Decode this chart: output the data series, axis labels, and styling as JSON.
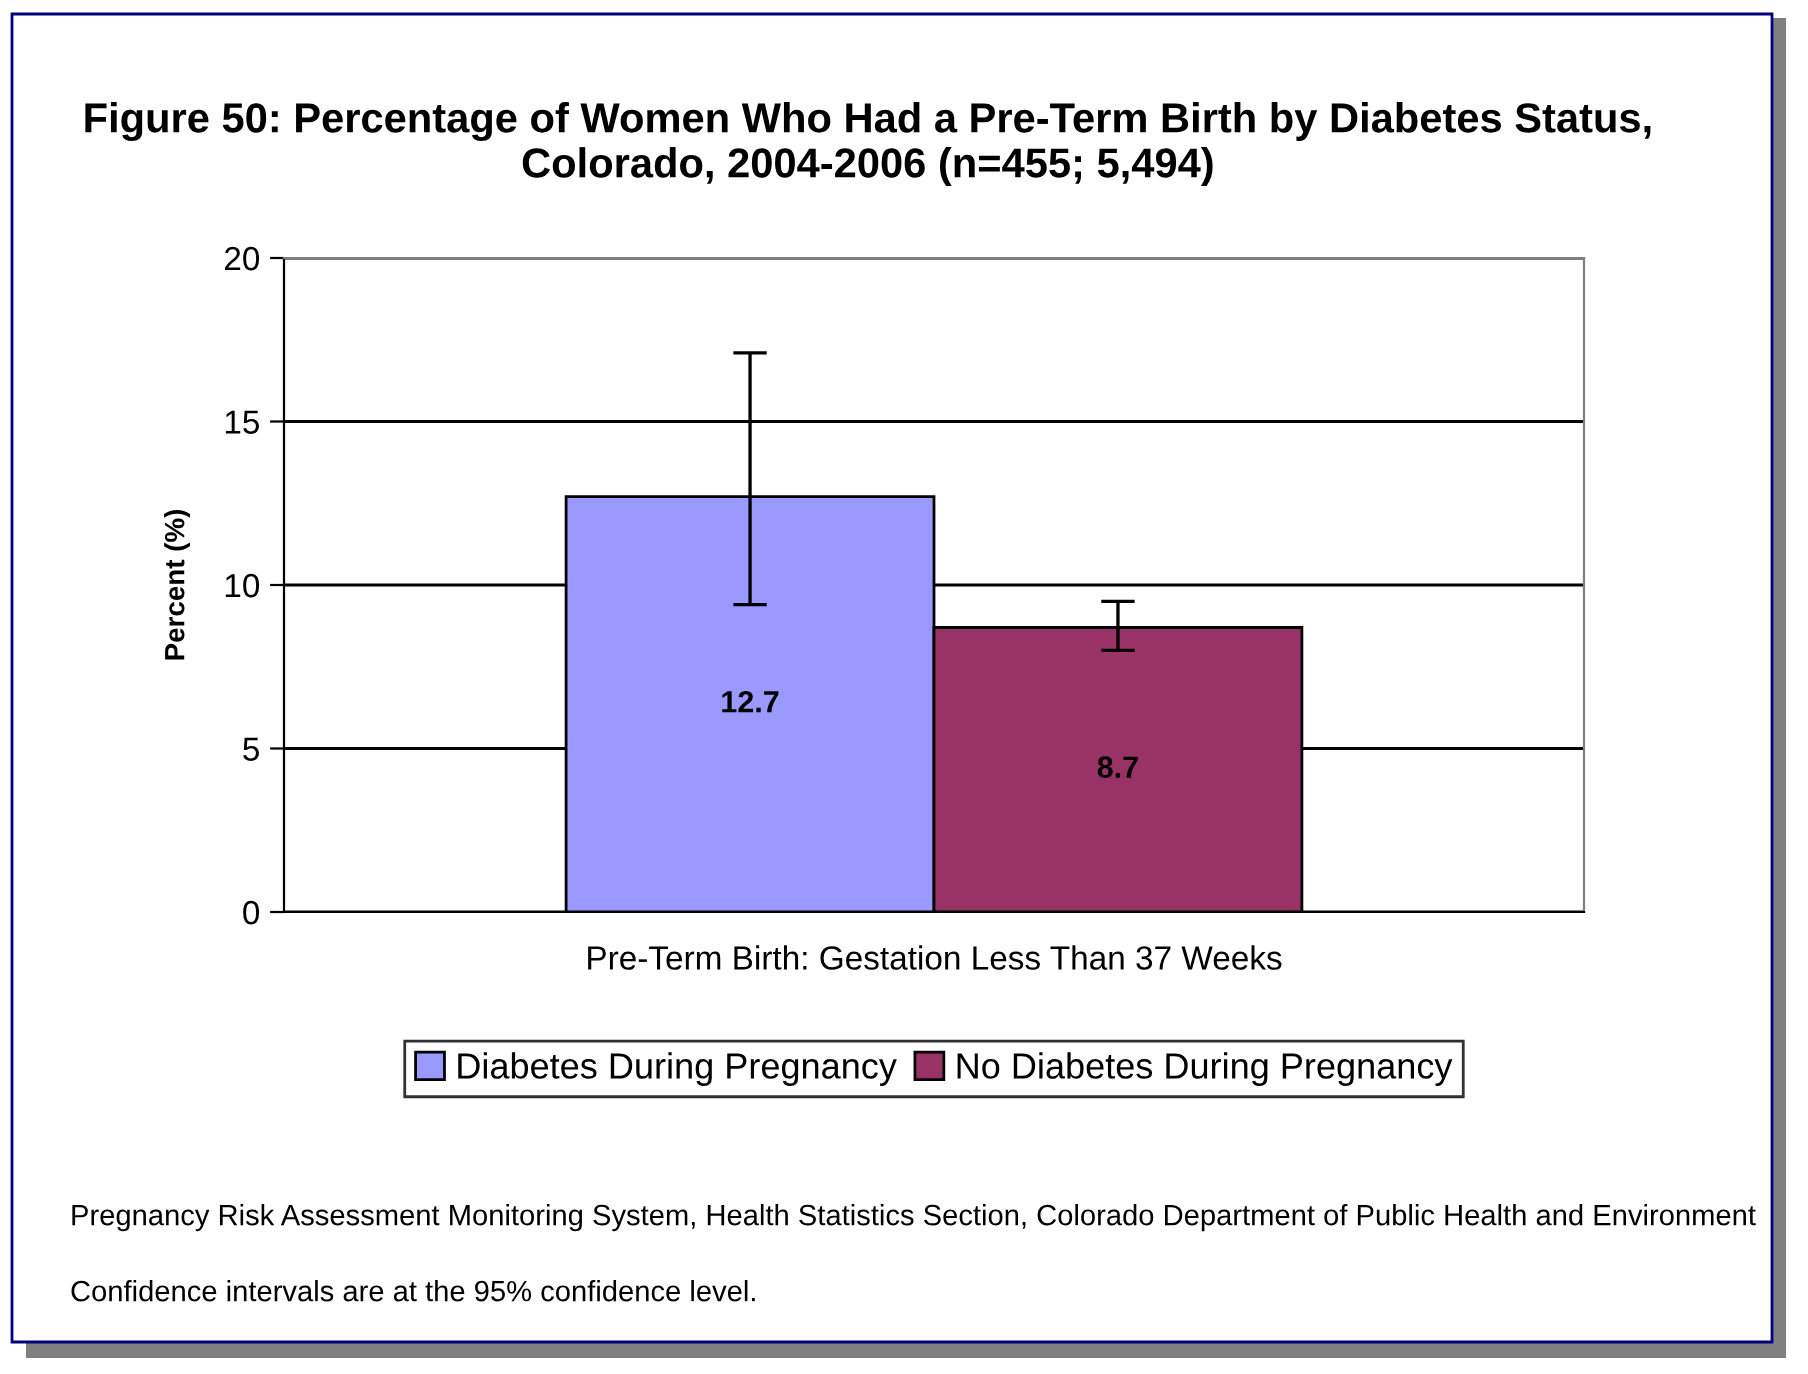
{
  "chart_data": {
    "type": "bar",
    "title": "Figure 50: Percentage of Women Who Had a Pre-Term Birth by Diabetes Status, Colorado, 2004-2006 (n=455; 5,494)",
    "ylabel": "Percent (%)",
    "categories": [
      "Pre-Term Birth: Gestation Less Than 37 Weeks"
    ],
    "series": [
      {
        "name": "Diabetes During Pregnancy",
        "color": "#9999ff",
        "values": [
          12.7
        ],
        "errors": [
          [
            9.4,
            17.1
          ]
        ]
      },
      {
        "name": "No Diabetes During Pregnancy",
        "color": "#993366",
        "values": [
          8.7
        ],
        "errors": [
          [
            8.0,
            9.5
          ]
        ]
      }
    ],
    "ylim": [
      0,
      20
    ],
    "yticks": [
      0,
      5,
      10,
      15,
      20
    ],
    "grid": "y",
    "legend": "bottom",
    "data_labels": true,
    "annotations": [
      "Pregnancy Risk Assessment Monitoring System, Health Statistics Section, Colorado Department of Public Health and Environment",
      "Confidence intervals are at the 95% confidence level."
    ]
  }
}
